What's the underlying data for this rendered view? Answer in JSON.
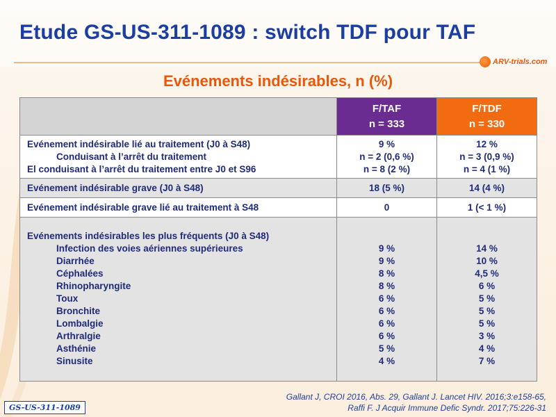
{
  "title": "Etude GS-US-311-1089 : switch TDF pour TAF",
  "logo": {
    "text": "ARV-trials.com"
  },
  "subtitle": "Evénements indésirables, n (%)",
  "columns": {
    "taf": {
      "name": "F/TAF",
      "n": "n = 333"
    },
    "tdf": {
      "name": "F/TDF",
      "n": "n = 330"
    }
  },
  "rows": [
    {
      "labels": [
        "Evénement indésirable lié au traitement (J0 à S48)",
        "Conduisant à l’arrêt du traitement",
        "El conduisant à l’arrêt du traitement entre J0 et S96"
      ],
      "taf": [
        "9 %",
        "n = 2 (0,6 %)",
        "n = 8 (2 %)"
      ],
      "tdf": [
        "12 %",
        "n = 3 (0,9 %)",
        "n = 4 (1 %)"
      ]
    },
    {
      "label": "Evénement indésirable grave (J0 à S48)",
      "taf": "18 (5 %)",
      "tdf": "14 (4 %)"
    },
    {
      "label": "Evénement indésirable grave lié au traitement à S48",
      "taf": "0",
      "tdf": "1 (< 1 %)"
    },
    {
      "label": "Evénements indésirables les plus fréquents  (J0 à S48)",
      "items": [
        {
          "name": "Infection des voies aériennes supérieures",
          "taf": "9 %",
          "tdf": "14 %"
        },
        {
          "name": "Diarrhée",
          "taf": "9 %",
          "tdf": "10 %"
        },
        {
          "name": "Céphalées",
          "taf": "8 %",
          "tdf": "4,5 %"
        },
        {
          "name": "Rhinopharyngite",
          "taf": "8 %",
          "tdf": "6 %"
        },
        {
          "name": "Toux",
          "taf": "6 %",
          "tdf": "5 %"
        },
        {
          "name": "Bronchite",
          "taf": "6 %",
          "tdf": "5 %"
        },
        {
          "name": "Lombalgie",
          "taf": "6 %",
          "tdf": "5 %"
        },
        {
          "name": "Arthralgie",
          "taf": "6 %",
          "tdf": "3 %"
        },
        {
          "name": "Asthénie",
          "taf": "5 %",
          "tdf": "4 %"
        },
        {
          "name": "Sinusite",
          "taf": "4 %",
          "tdf": "7 %"
        }
      ]
    }
  ],
  "reference": {
    "line1": "Gallant J, CROI 2016, Abs. 29, Gallant J. Lancet HIV. 2016;3:e158-65,",
    "line2": "Raffi F. J Acquir Immune Defic Syndr. 2017;75:226-31"
  },
  "badge": "GS-US-311-1089",
  "colors": {
    "title": "#1a3fa0",
    "accent": "#e8570b",
    "taf_header": "#6a2c91",
    "tdf_header": "#f26b11"
  }
}
